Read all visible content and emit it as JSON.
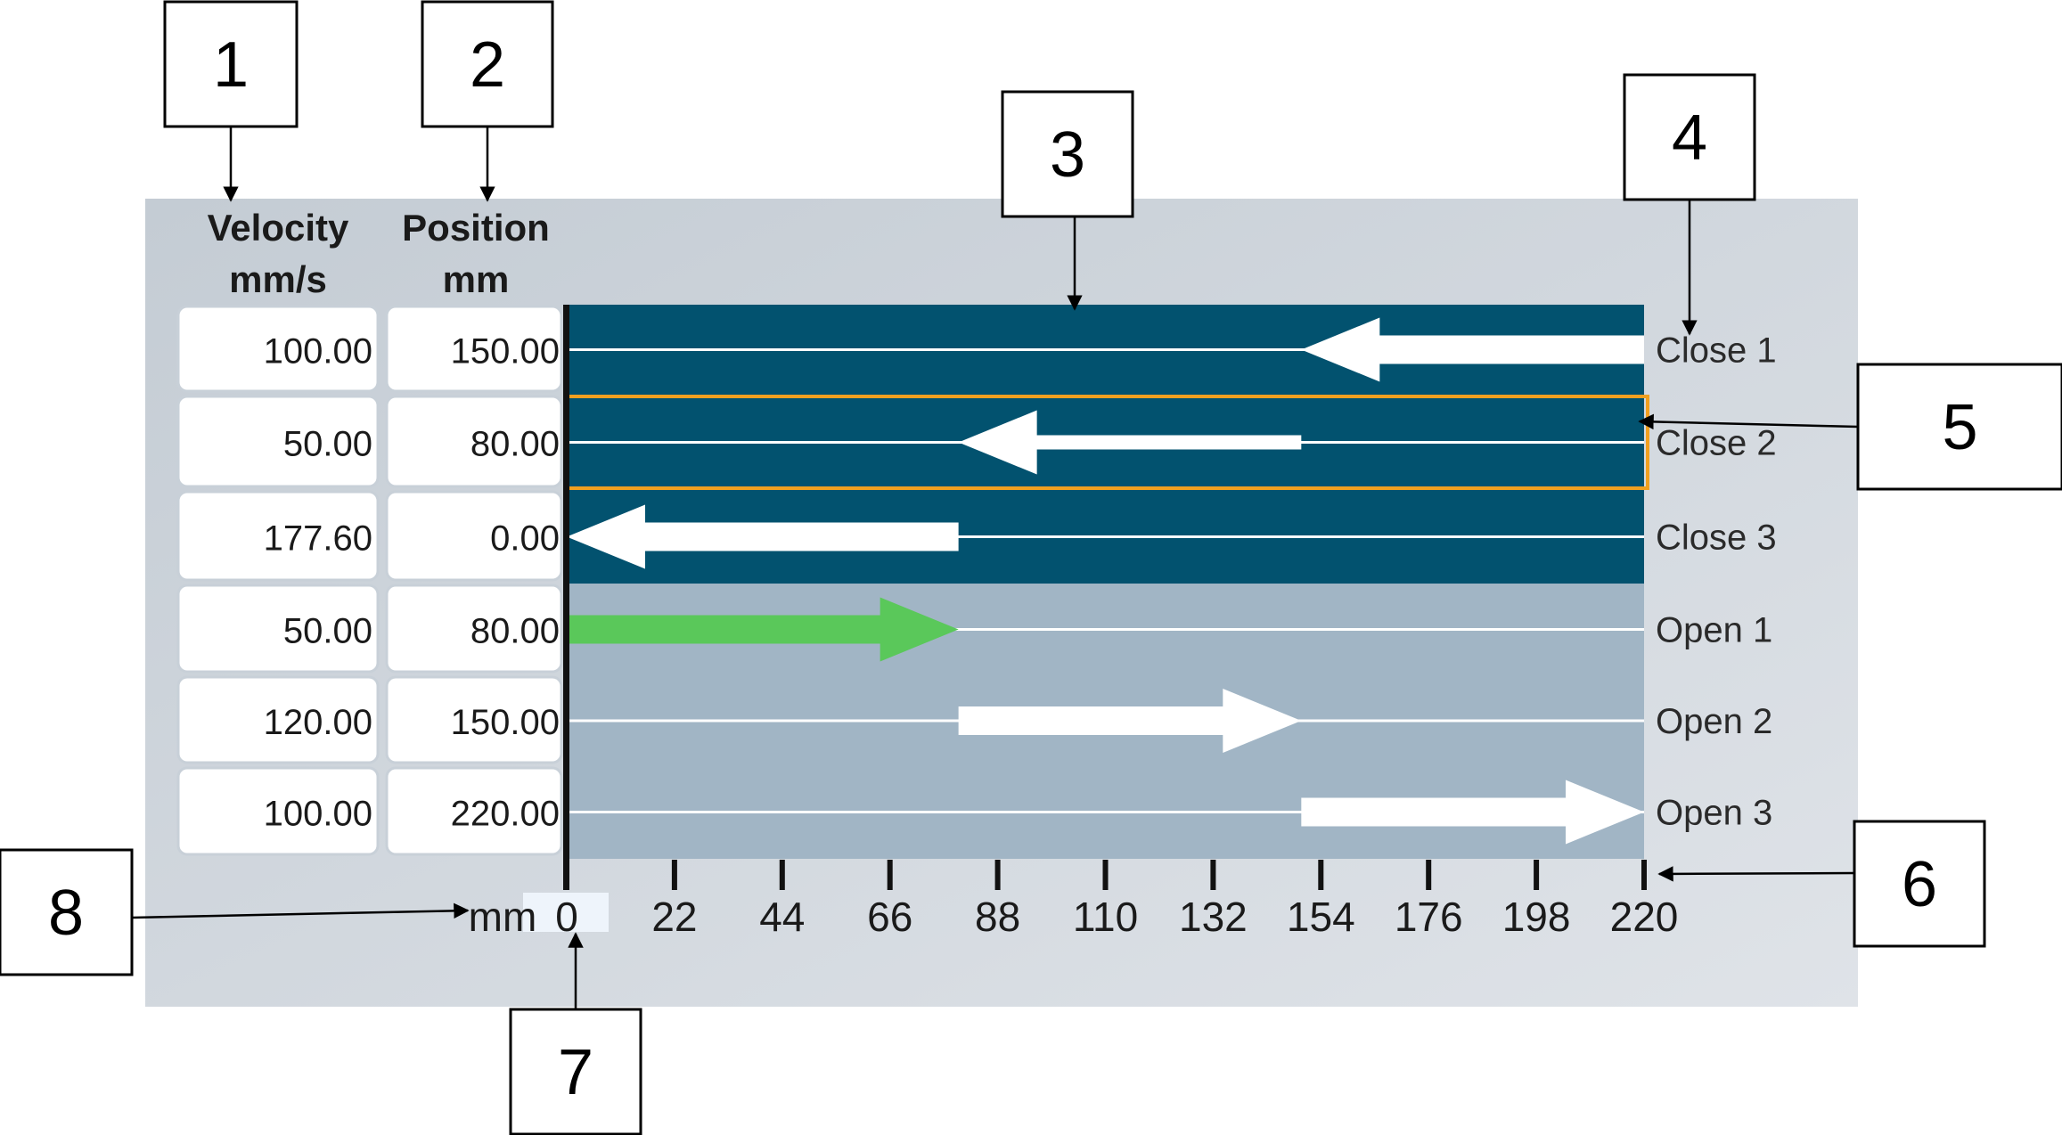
{
  "colors": {
    "close_band": "#02526f",
    "open_band": "#a1b5c5",
    "selected_outline": "#f0a020",
    "green_arrow": "#5ac85a",
    "white_arrow": "#ffffff"
  },
  "headers": {
    "velocity": [
      "Velocity",
      "mm/s"
    ],
    "position": [
      "Position",
      "mm"
    ]
  },
  "rows": [
    {
      "label": "Close 1",
      "velocity": "100.00",
      "position": "150.00",
      "type": "close",
      "start": 220,
      "end": 150,
      "arrow": "white"
    },
    {
      "label": "Close 2",
      "velocity": "50.00",
      "position": "80.00",
      "type": "close",
      "start": 150,
      "end": 80,
      "arrow": "white",
      "selected": true
    },
    {
      "label": "Close 3",
      "velocity": "177.60",
      "position": "0.00",
      "type": "close",
      "start": 80,
      "end": 0,
      "arrow": "white"
    },
    {
      "label": "Open 1",
      "velocity": "50.00",
      "position": "80.00",
      "type": "open",
      "start": 0,
      "end": 80,
      "arrow": "green"
    },
    {
      "label": "Open 2",
      "velocity": "120.00",
      "position": "150.00",
      "type": "open",
      "start": 80,
      "end": 150,
      "arrow": "white"
    },
    {
      "label": "Open 3",
      "velocity": "100.00",
      "position": "220.00",
      "type": "open",
      "start": 150,
      "end": 220,
      "arrow": "white"
    }
  ],
  "axis": {
    "unit": "mm",
    "min": 0,
    "max": 220,
    "ticks": [
      "0",
      "22",
      "44",
      "66",
      "88",
      "110",
      "132",
      "154",
      "176",
      "198",
      "220"
    ]
  },
  "callouts": [
    "1",
    "2",
    "3",
    "4",
    "5",
    "6",
    "7",
    "8"
  ]
}
